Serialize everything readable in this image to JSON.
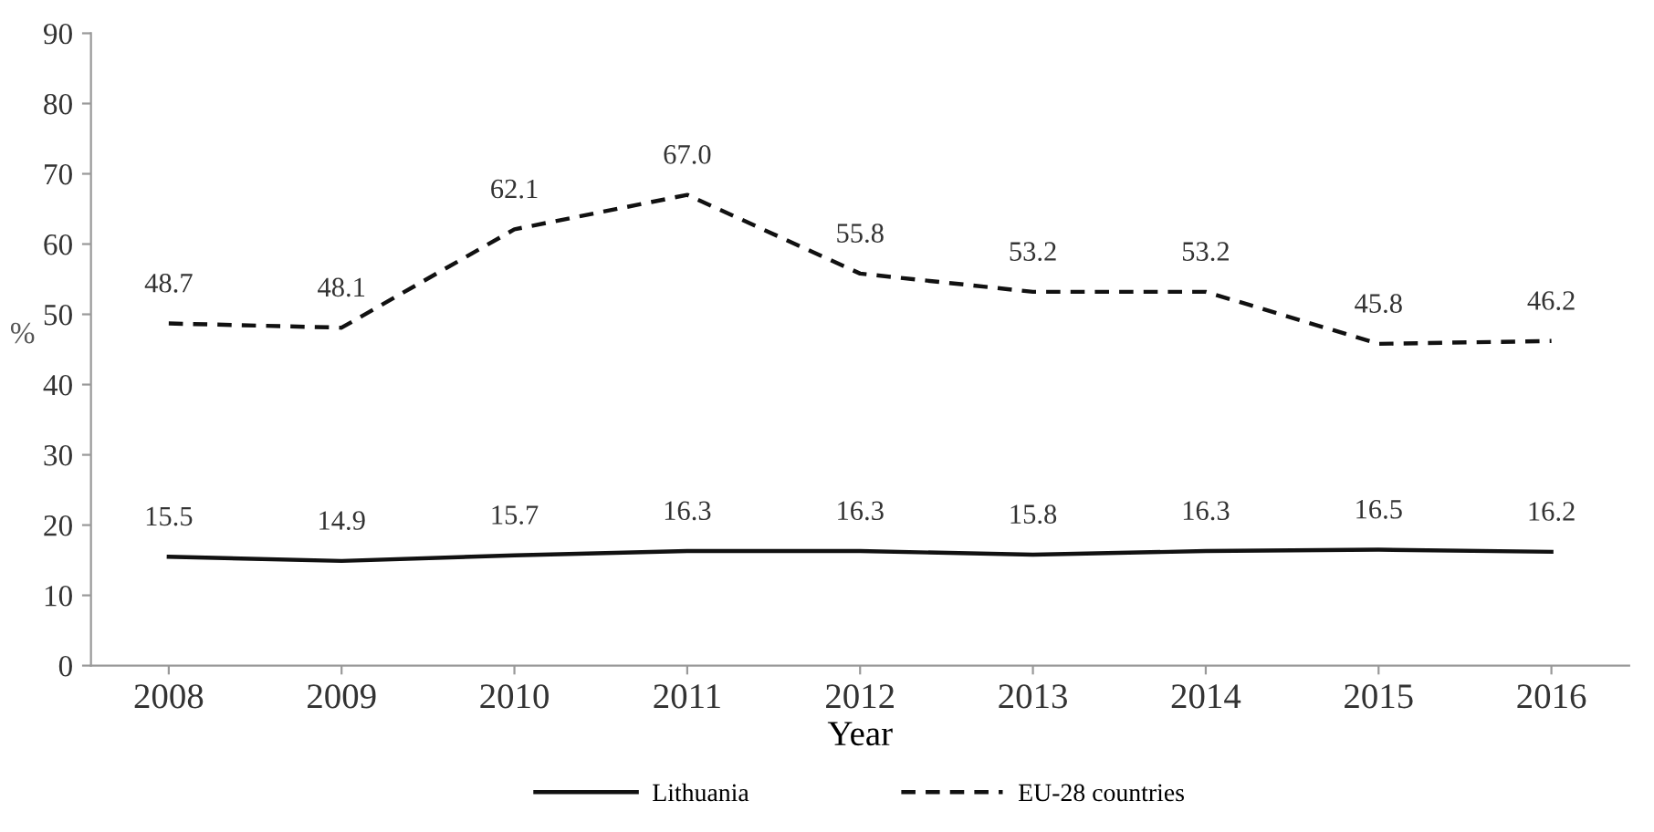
{
  "chart_data": {
    "type": "line",
    "xlabel": "Year",
    "ylabel": "%",
    "categories": [
      "2008",
      "2009",
      "2010",
      "2011",
      "2012",
      "2013",
      "2014",
      "2015",
      "2016"
    ],
    "series": [
      {
        "name": "Lithuania",
        "color": "#111111",
        "line_style": "solid",
        "values": [
          15.5,
          14.9,
          15.7,
          16.3,
          16.3,
          15.8,
          16.3,
          16.5,
          16.2
        ],
        "value_labels": [
          "15.5",
          "14.9",
          "15.7",
          "16.3",
          "16.3",
          "15.8",
          "16.3",
          "16.5",
          "16.2"
        ]
      },
      {
        "name": "EU-28 countries",
        "color": "#111111",
        "line_style": "dashed",
        "values": [
          48.7,
          48.1,
          62.1,
          67.0,
          55.8,
          53.2,
          53.2,
          45.8,
          46.2
        ],
        "value_labels": [
          "48.7",
          "48.1",
          "62.1",
          "67.0",
          "55.8",
          "53.2",
          "53.2",
          "45.8",
          "46.2"
        ]
      }
    ],
    "ylim": [
      0,
      90
    ],
    "yticks": [
      0,
      10,
      20,
      30,
      40,
      50,
      60,
      70,
      80,
      90
    ],
    "legend": "bottom",
    "grid": false,
    "marker": "none"
  }
}
